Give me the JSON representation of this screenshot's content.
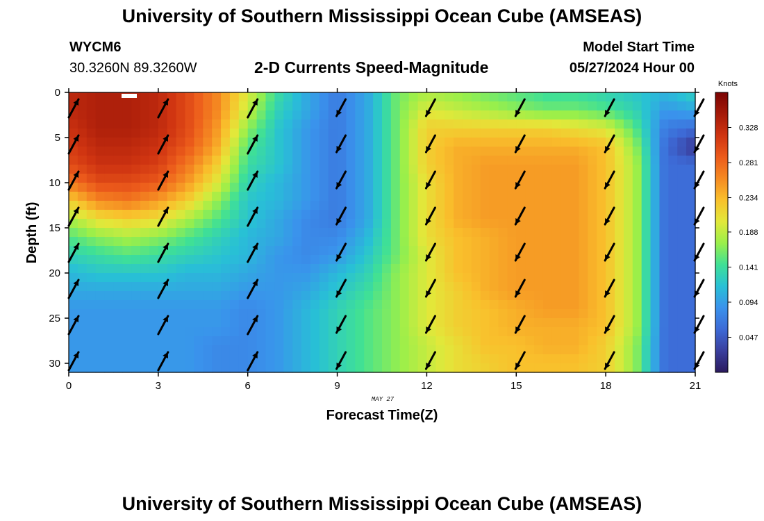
{
  "header": {
    "title": "University of Southern Mississippi Ocean Cube (AMSEAS)",
    "station_id": "WYCM6",
    "station_coords": "30.3260N  89.3260W",
    "plot_title": "2-D Currents Speed-Magnitude",
    "model_start_label": "Model Start Time",
    "model_start_value": "05/27/2024 Hour 00"
  },
  "footer": {
    "title": "University of Southern Mississippi Ocean Cube (AMSEAS)"
  },
  "colors": {
    "colormap": [
      "#2b1a5e",
      "#3a3f9e",
      "#3d6ad6",
      "#3a92ec",
      "#28c0d6",
      "#3fe096",
      "#9aef4a",
      "#e2e83a",
      "#f9c02c",
      "#f58a22",
      "#ec5b1b",
      "#cf3411",
      "#a51a09",
      "#7a0403"
    ]
  },
  "chart_data": {
    "type": "heatmap",
    "title": "2-D Currents Speed-Magnitude",
    "xlabel": "Forecast Time(Z)",
    "ylabel": "Depth (ft)",
    "x_ticks": [
      "0",
      "3",
      "6",
      "9",
      "12",
      "15",
      "18",
      "21"
    ],
    "y_ticks": [
      "0",
      "5",
      "10",
      "15",
      "20",
      "25",
      "30"
    ],
    "xlim": [
      0,
      21
    ],
    "ylim": [
      0,
      31
    ],
    "x_annotation": "MAY 27",
    "colorbar": {
      "title": "Knots",
      "ticks": [
        "0.328",
        "0.281",
        "0.234",
        "0.188",
        "0.141",
        "0.094",
        "0.047"
      ],
      "range": [
        0,
        0.375
      ]
    },
    "hours": [
      0,
      1,
      2,
      3,
      4,
      5,
      6,
      7,
      8,
      9,
      10,
      11,
      12,
      13,
      14,
      15,
      16,
      17,
      18,
      19,
      20,
      21
    ],
    "depths": [
      0,
      2,
      4,
      6,
      8,
      10,
      12,
      14,
      16,
      18,
      20,
      22,
      24,
      26,
      28,
      30
    ],
    "speed_knots": [
      [
        0.33,
        0.34,
        0.34,
        0.33,
        0.3,
        0.26,
        0.2,
        0.14,
        0.1,
        0.07,
        0.1,
        0.16,
        0.18,
        0.17,
        0.16,
        0.15,
        0.14,
        0.14,
        0.13,
        0.12,
        0.11,
        0.13
      ],
      [
        0.33,
        0.34,
        0.34,
        0.33,
        0.3,
        0.26,
        0.19,
        0.13,
        0.1,
        0.07,
        0.1,
        0.16,
        0.2,
        0.19,
        0.18,
        0.17,
        0.16,
        0.16,
        0.15,
        0.13,
        0.09,
        0.1
      ],
      [
        0.32,
        0.34,
        0.34,
        0.33,
        0.3,
        0.25,
        0.17,
        0.12,
        0.09,
        0.07,
        0.1,
        0.16,
        0.22,
        0.22,
        0.22,
        0.22,
        0.22,
        0.21,
        0.2,
        0.15,
        0.07,
        0.06
      ],
      [
        0.31,
        0.33,
        0.33,
        0.32,
        0.29,
        0.24,
        0.15,
        0.12,
        0.09,
        0.07,
        0.1,
        0.16,
        0.22,
        0.24,
        0.24,
        0.24,
        0.24,
        0.24,
        0.23,
        0.17,
        0.06,
        0.02
      ],
      [
        0.3,
        0.32,
        0.32,
        0.31,
        0.27,
        0.22,
        0.14,
        0.12,
        0.09,
        0.07,
        0.1,
        0.16,
        0.22,
        0.24,
        0.25,
        0.25,
        0.25,
        0.25,
        0.23,
        0.18,
        0.06,
        0.06
      ],
      [
        0.27,
        0.3,
        0.3,
        0.29,
        0.25,
        0.2,
        0.13,
        0.11,
        0.09,
        0.07,
        0.1,
        0.16,
        0.21,
        0.24,
        0.25,
        0.25,
        0.25,
        0.25,
        0.23,
        0.18,
        0.06,
        0.06
      ],
      [
        0.22,
        0.26,
        0.27,
        0.25,
        0.22,
        0.17,
        0.12,
        0.11,
        0.09,
        0.07,
        0.1,
        0.16,
        0.21,
        0.24,
        0.25,
        0.25,
        0.25,
        0.25,
        0.23,
        0.18,
        0.06,
        0.06
      ],
      [
        0.18,
        0.21,
        0.22,
        0.21,
        0.18,
        0.15,
        0.12,
        0.1,
        0.08,
        0.07,
        0.1,
        0.16,
        0.21,
        0.24,
        0.25,
        0.25,
        0.25,
        0.25,
        0.23,
        0.18,
        0.06,
        0.06
      ],
      [
        0.15,
        0.17,
        0.18,
        0.17,
        0.15,
        0.13,
        0.11,
        0.1,
        0.08,
        0.08,
        0.11,
        0.16,
        0.21,
        0.23,
        0.24,
        0.25,
        0.25,
        0.25,
        0.23,
        0.18,
        0.06,
        0.06
      ],
      [
        0.13,
        0.14,
        0.15,
        0.14,
        0.13,
        0.12,
        0.11,
        0.09,
        0.08,
        0.09,
        0.12,
        0.16,
        0.2,
        0.23,
        0.24,
        0.25,
        0.25,
        0.25,
        0.23,
        0.18,
        0.06,
        0.06
      ],
      [
        0.11,
        0.12,
        0.12,
        0.12,
        0.11,
        0.11,
        0.1,
        0.09,
        0.09,
        0.11,
        0.13,
        0.17,
        0.2,
        0.23,
        0.24,
        0.25,
        0.25,
        0.25,
        0.23,
        0.18,
        0.06,
        0.06
      ],
      [
        0.1,
        0.1,
        0.1,
        0.1,
        0.1,
        0.1,
        0.09,
        0.09,
        0.1,
        0.12,
        0.14,
        0.17,
        0.2,
        0.22,
        0.24,
        0.25,
        0.25,
        0.25,
        0.23,
        0.18,
        0.06,
        0.06
      ],
      [
        0.09,
        0.09,
        0.09,
        0.09,
        0.09,
        0.09,
        0.08,
        0.09,
        0.11,
        0.13,
        0.15,
        0.17,
        0.2,
        0.22,
        0.23,
        0.24,
        0.25,
        0.25,
        0.23,
        0.18,
        0.06,
        0.06
      ],
      [
        0.09,
        0.09,
        0.09,
        0.09,
        0.09,
        0.09,
        0.08,
        0.09,
        0.11,
        0.13,
        0.15,
        0.17,
        0.2,
        0.22,
        0.23,
        0.24,
        0.24,
        0.24,
        0.23,
        0.18,
        0.06,
        0.06
      ],
      [
        0.09,
        0.09,
        0.09,
        0.09,
        0.09,
        0.08,
        0.08,
        0.09,
        0.11,
        0.13,
        0.15,
        0.17,
        0.19,
        0.21,
        0.23,
        0.23,
        0.24,
        0.24,
        0.22,
        0.17,
        0.06,
        0.06
      ],
      [
        0.09,
        0.09,
        0.09,
        0.09,
        0.09,
        0.08,
        0.08,
        0.09,
        0.11,
        0.13,
        0.15,
        0.17,
        0.19,
        0.21,
        0.22,
        0.23,
        0.23,
        0.23,
        0.22,
        0.17,
        0.06,
        0.06
      ]
    ],
    "arrow_rows_ft": [
      2,
      6,
      10,
      14,
      18,
      22,
      26,
      30
    ],
    "arrows": [
      {
        "hour": 0,
        "dir": "ne"
      },
      {
        "hour": 3,
        "dir": "ne"
      },
      {
        "hour": 6,
        "dir": "ne"
      },
      {
        "hour": 9,
        "dir": "sw"
      },
      {
        "hour": 12,
        "dir": "sw"
      },
      {
        "hour": 15,
        "dir": "sw"
      },
      {
        "hour": 18,
        "dir": "sw"
      },
      {
        "hour": 21,
        "dir": "sw"
      }
    ]
  }
}
